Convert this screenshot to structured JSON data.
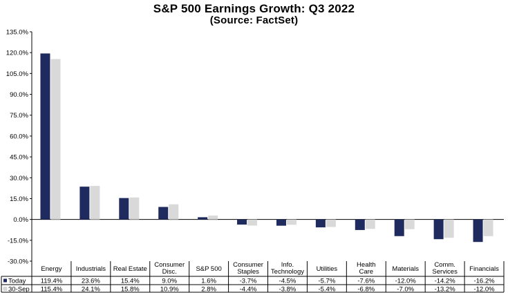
{
  "chart_data": {
    "type": "bar",
    "title": "S&P 500 Earnings Growth: Q3 2022",
    "subtitle": "(Source: FactSet)",
    "categories": [
      [
        "Energy"
      ],
      [
        "Industrials"
      ],
      [
        "Real Estate"
      ],
      [
        "Consumer",
        "Disc."
      ],
      [
        "S&P 500"
      ],
      [
        "Consumer",
        "Staples"
      ],
      [
        "Info.",
        "Technology"
      ],
      [
        "Utilities"
      ],
      [
        "Health",
        "Care"
      ],
      [
        "Materials"
      ],
      [
        "Comm.",
        "Services"
      ],
      [
        "Financials"
      ]
    ],
    "series": [
      {
        "name": "Today",
        "color": "#1f2a5e",
        "values": [
          119.4,
          23.6,
          15.4,
          9.0,
          1.6,
          -3.7,
          -4.5,
          -5.7,
          -7.6,
          -12.0,
          -14.2,
          -16.2
        ],
        "labels": [
          "119.4%",
          "23.6%",
          "15.4%",
          "9.0%",
          "1.6%",
          "-3.7%",
          "-4.5%",
          "-5.7%",
          "-7.6%",
          "-12.0%",
          "-14.2%",
          "-16.2%"
        ]
      },
      {
        "name": "30-Sep",
        "color": "#d9d9d9",
        "values": [
          115.4,
          24.1,
          15.8,
          10.9,
          2.8,
          -4.4,
          -3.8,
          -5.4,
          -6.8,
          -7.0,
          -13.2,
          -12.0
        ],
        "labels": [
          "115.4%",
          "24.1%",
          "15.8%",
          "10.9%",
          "2.8%",
          "-4.4%",
          "-3.8%",
          "-5.4%",
          "-6.8%",
          "-7.0%",
          "-13.2%",
          "-12.0%"
        ]
      }
    ],
    "ylim": [
      -30,
      135
    ],
    "yticks": [
      135,
      120,
      105,
      90,
      75,
      60,
      45,
      30,
      15,
      0,
      -15,
      -30
    ],
    "ytick_labels": [
      "135.0%",
      "120.0%",
      "105.0%",
      "90.0%",
      "75.0%",
      "60.0%",
      "45.0%",
      "30.0%",
      "15.0%",
      "0.0%",
      "-15.0%",
      "-30.0%"
    ],
    "grid": false,
    "legend": "data-table"
  }
}
